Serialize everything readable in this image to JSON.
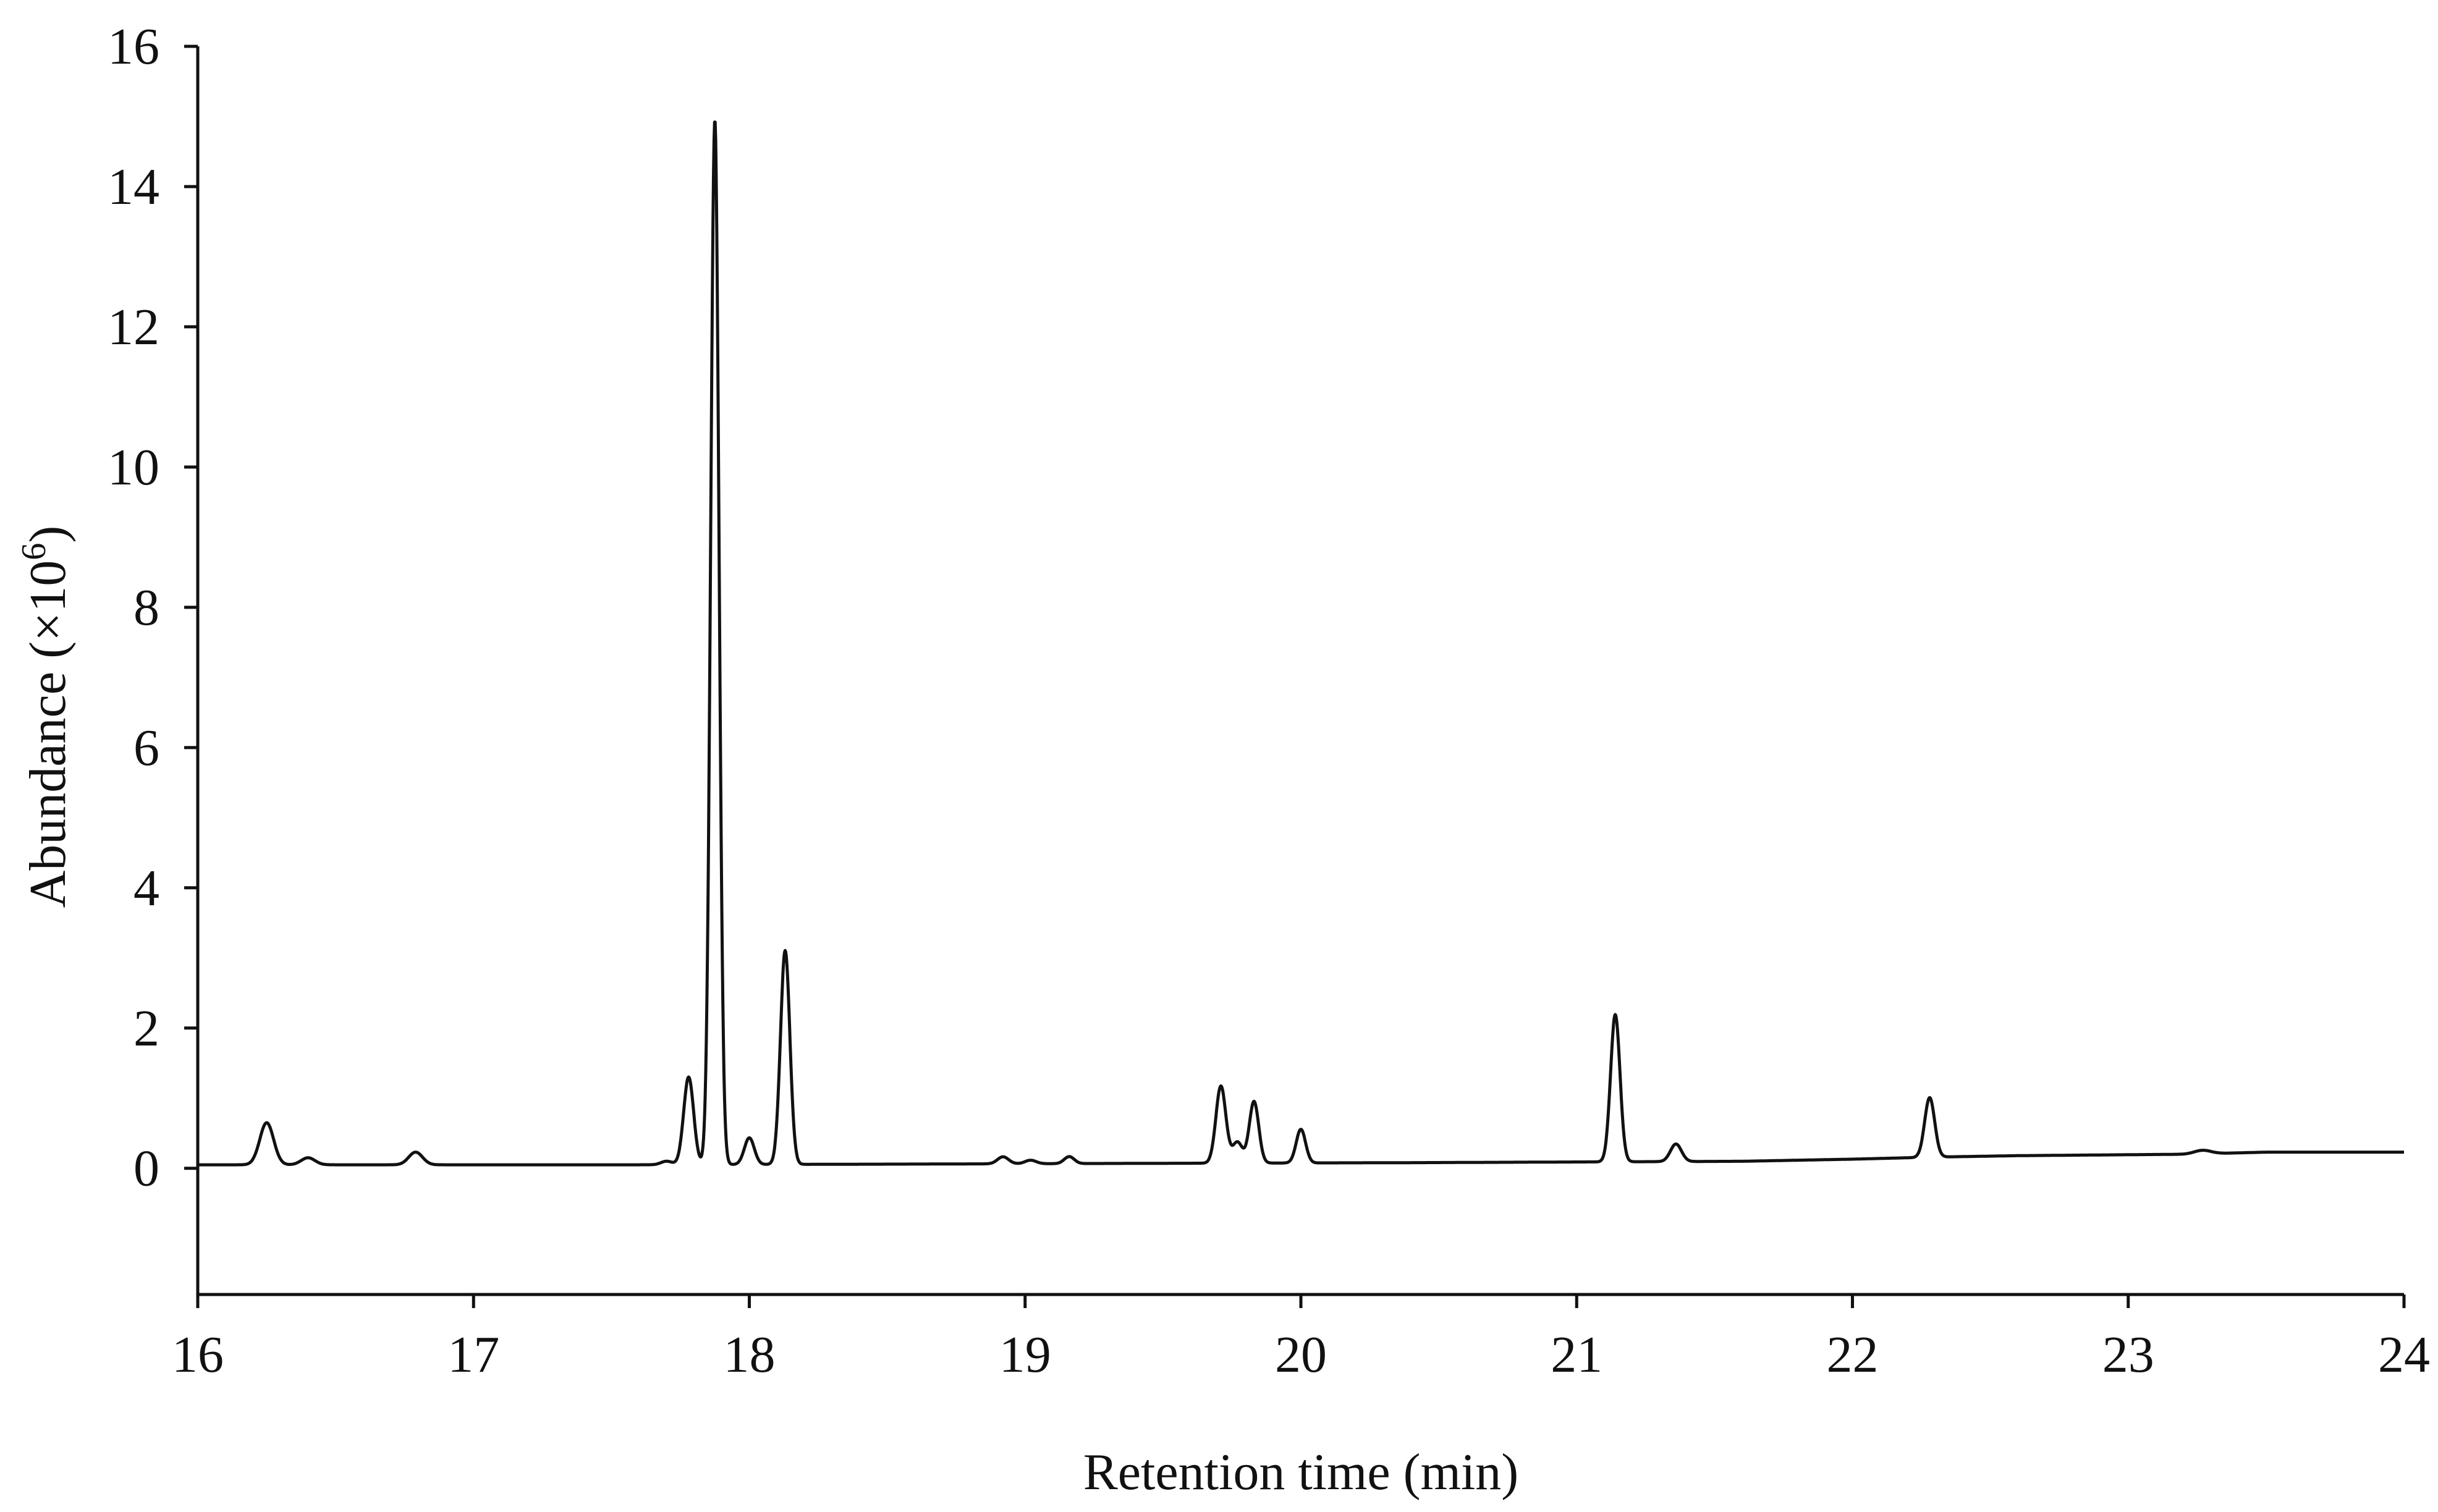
{
  "chart_data": {
    "type": "line",
    "title": "",
    "xlabel": "Retention time (min)",
    "ylabel_main": "Abundance (×10",
    "ylabel_exp": "6",
    "ylabel_end": ")",
    "xlim": [
      16,
      24
    ],
    "ylim": [
      -1.8,
      16
    ],
    "xticks": [
      16,
      17,
      18,
      19,
      20,
      21,
      22,
      23,
      24
    ],
    "yticks": [
      0,
      2,
      4,
      6,
      8,
      10,
      12,
      14,
      16
    ],
    "grid": false,
    "baseline": [
      [
        16.0,
        0.05
      ],
      [
        17.6,
        0.05
      ],
      [
        18.6,
        0.06
      ],
      [
        19.4,
        0.07
      ],
      [
        20.4,
        0.08
      ],
      [
        21.0,
        0.09
      ],
      [
        21.6,
        0.1
      ],
      [
        22.0,
        0.13
      ],
      [
        22.3,
        0.16
      ],
      [
        22.6,
        0.18
      ],
      [
        23.2,
        0.2
      ],
      [
        23.5,
        0.23
      ],
      [
        24.0,
        0.23
      ]
    ],
    "peaks": [
      {
        "rt": 16.25,
        "height": 0.6,
        "width": 0.025
      },
      {
        "rt": 16.4,
        "height": 0.1,
        "width": 0.025
      },
      {
        "rt": 16.79,
        "height": 0.18,
        "width": 0.025
      },
      {
        "rt": 17.7,
        "height": 0.05,
        "width": 0.02
      },
      {
        "rt": 17.78,
        "height": 1.25,
        "width": 0.018
      },
      {
        "rt": 17.875,
        "height": 14.9,
        "width": 0.015
      },
      {
        "rt": 18.0,
        "height": 0.38,
        "width": 0.018
      },
      {
        "rt": 18.13,
        "height": 3.05,
        "width": 0.017
      },
      {
        "rt": 18.92,
        "height": 0.1,
        "width": 0.02
      },
      {
        "rt": 19.02,
        "height": 0.05,
        "width": 0.02
      },
      {
        "rt": 19.16,
        "height": 0.1,
        "width": 0.018
      },
      {
        "rt": 19.71,
        "height": 1.1,
        "width": 0.018
      },
      {
        "rt": 19.77,
        "height": 0.3,
        "width": 0.018
      },
      {
        "rt": 19.83,
        "height": 0.88,
        "width": 0.017
      },
      {
        "rt": 20.0,
        "height": 0.48,
        "width": 0.017
      },
      {
        "rt": 21.14,
        "height": 2.1,
        "width": 0.017
      },
      {
        "rt": 21.36,
        "height": 0.25,
        "width": 0.02
      },
      {
        "rt": 22.28,
        "height": 0.85,
        "width": 0.018
      },
      {
        "rt": 23.27,
        "height": 0.05,
        "width": 0.03
      }
    ]
  }
}
